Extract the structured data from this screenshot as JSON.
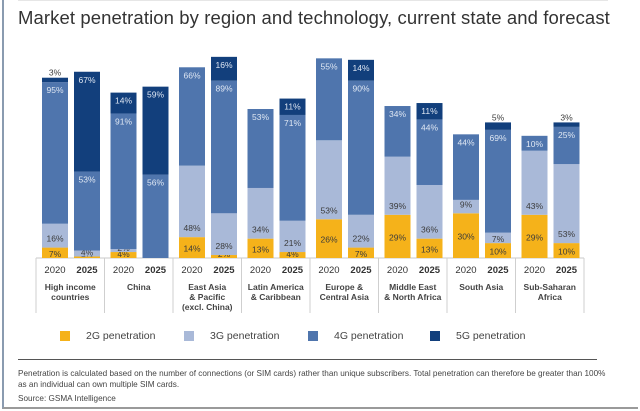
{
  "title": "Market penetration by region and technology, current state and forecast",
  "colors": {
    "2G": "#f5b21a",
    "3G": "#a9b9d8",
    "4G": "#4f75ad",
    "5G": "#123f7c",
    "label_dark": "#3b3b3b",
    "label_light": "#dfe7f3"
  },
  "legend": [
    {
      "key": "2G",
      "label": "2G penetration"
    },
    {
      "key": "3G",
      "label": "3G penetration"
    },
    {
      "key": "4G",
      "label": "4G penetration"
    },
    {
      "key": "5G",
      "label": "5G penetration"
    }
  ],
  "footnote": "Penetration is calculated based on the number of connections (or SIM cards) rather than unique subscribers. Total penetration can therefore be greater than 100% as an individual can own multiple SIM cards.",
  "source": "Source: GSMA Intelligence",
  "chart_data": {
    "type": "bar",
    "stacked": true,
    "title": "Market penetration by region and technology, current state and forecast",
    "xlabel": "",
    "ylabel": "",
    "unit": "%",
    "legend_position": "bottom",
    "grid": false,
    "categories": [
      "High income countries",
      "China",
      "East Asia & Pacific (excl. China)",
      "Latin America & Caribbean",
      "Europe & Central Asia",
      "Middle East & North Africa",
      "South Asia",
      "Sub-Saharan Africa"
    ],
    "category_lines": [
      [
        "High income",
        "countries"
      ],
      [
        "China"
      ],
      [
        "East Asia",
        "& Pacific",
        "(excl. China)"
      ],
      [
        "Latin America",
        "& Caribbean"
      ],
      [
        "Europe &",
        "Central Asia"
      ],
      [
        "Middle East",
        "& North Africa"
      ],
      [
        "South Asia"
      ],
      [
        "Sub-Saharan",
        "Africa"
      ]
    ],
    "years": [
      "2020",
      "2025"
    ],
    "series": [
      {
        "name": "2G penetration",
        "key": "2G",
        "values": {
          "2020": [
            7,
            4,
            14,
            13,
            26,
            29,
            30,
            29
          ],
          "2025": [
            1,
            0,
            2,
            4,
            7,
            13,
            10,
            10
          ]
        }
      },
      {
        "name": "3G penetration",
        "key": "3G",
        "values": {
          "2020": [
            16,
            2,
            48,
            34,
            53,
            39,
            9,
            43
          ],
          "2025": [
            4,
            0,
            28,
            21,
            22,
            36,
            7,
            53
          ]
        }
      },
      {
        "name": "4G penetration",
        "key": "4G",
        "values": {
          "2020": [
            95,
            91,
            66,
            53,
            55,
            34,
            44,
            10
          ],
          "2025": [
            53,
            56,
            89,
            71,
            90,
            44,
            69,
            25
          ]
        }
      },
      {
        "name": "5G penetration",
        "key": "5G",
        "values": {
          "2020": [
            3,
            14,
            0,
            0,
            0,
            0,
            0,
            0
          ],
          "2025": [
            67,
            59,
            16,
            11,
            14,
            11,
            5,
            3
          ]
        }
      }
    ],
    "ylim": [
      0,
      135
    ]
  }
}
